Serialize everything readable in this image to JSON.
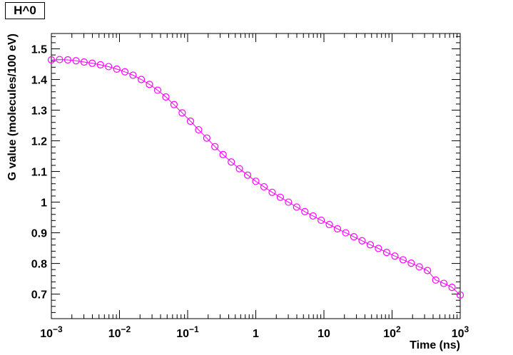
{
  "chart_data": {
    "type": "line",
    "title": "H^0",
    "xlabel": "Time (ns)",
    "ylabel": "G value (molecules/100 eV)",
    "xscale": "log",
    "xlim": [
      0.001,
      1000
    ],
    "ylim": [
      0.62,
      1.55
    ],
    "grid": false,
    "x_ticks": [
      {
        "base": "10",
        "exp": "−3"
      },
      {
        "base": "10",
        "exp": "−2"
      },
      {
        "base": "10",
        "exp": "−1"
      },
      {
        "base": "1",
        "exp": ""
      },
      {
        "base": "10",
        "exp": ""
      },
      {
        "base": "10",
        "exp": "2"
      },
      {
        "base": "10",
        "exp": "3"
      }
    ],
    "y_ticks": [
      "0.7",
      "0.8",
      "0.9",
      "1",
      "1.1",
      "1.2",
      "1.3",
      "1.4",
      "1.5"
    ],
    "series": [
      {
        "color": "#ff00ff",
        "marker": "open-circle",
        "x": [
          0.001,
          0.00132,
          0.00174,
          0.0023,
          0.00302,
          0.00398,
          0.00525,
          0.00692,
          0.00912,
          0.012,
          0.0158,
          0.0209,
          0.0275,
          0.0363,
          0.0479,
          0.0631,
          0.0832,
          0.11,
          0.145,
          0.191,
          0.251,
          0.331,
          0.437,
          0.575,
          0.759,
          1.0,
          1.32,
          1.74,
          2.29,
          3.02,
          3.98,
          5.25,
          6.92,
          9.12,
          12.0,
          15.8,
          20.9,
          27.5,
          36.3,
          47.9,
          63.1,
          83.2,
          110,
          145,
          191,
          251,
          331,
          437,
          575,
          759,
          1000
        ],
        "y": [
          1.464,
          1.465,
          1.464,
          1.461,
          1.457,
          1.453,
          1.448,
          1.442,
          1.434,
          1.425,
          1.414,
          1.4,
          1.384,
          1.365,
          1.343,
          1.318,
          1.291,
          1.264,
          1.236,
          1.209,
          1.181,
          1.155,
          1.131,
          1.109,
          1.088,
          1.068,
          1.05,
          1.032,
          1.016,
          1.0,
          0.984,
          0.969,
          0.955,
          0.941,
          0.927,
          0.913,
          0.9,
          0.887,
          0.874,
          0.861,
          0.849,
          0.836,
          0.824,
          0.812,
          0.801,
          0.789,
          0.777,
          0.746,
          0.735,
          0.722,
          0.697
        ]
      }
    ]
  }
}
